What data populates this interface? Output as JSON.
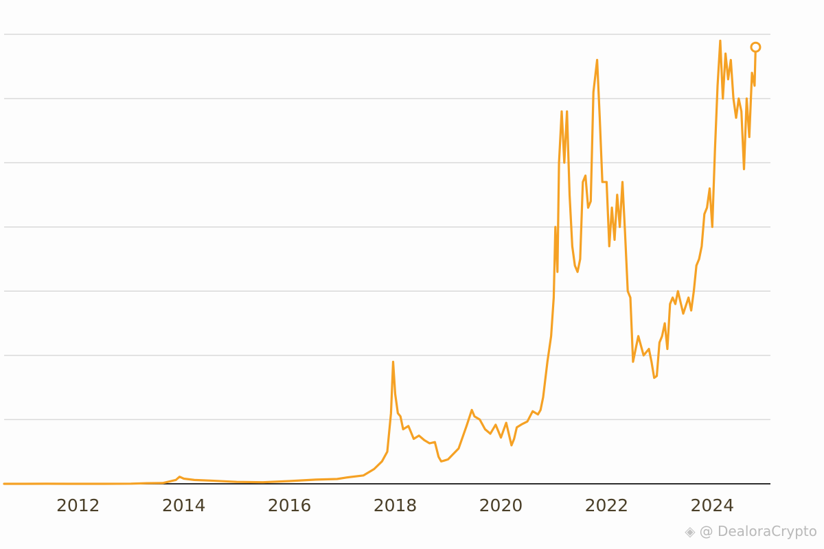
{
  "chart_data": {
    "type": "line",
    "title": "",
    "xlabel": "",
    "ylabel": "",
    "x_ticks": [
      "2012",
      "2014",
      "2016",
      "2018",
      "2020",
      "2022",
      "2024"
    ],
    "xlim": [
      2010.6,
      2025.1
    ],
    "ylim": [
      0,
      70000
    ],
    "y_gridlines": [
      10000,
      20000,
      30000,
      40000,
      50000,
      60000,
      70000
    ],
    "y_tick_labels_shown": false,
    "grid": true,
    "color": "#f5a124",
    "end_marker": true,
    "series": [
      {
        "x": [
          2010.6,
          2011.0,
          2011.4,
          2011.8,
          2012.5,
          2013.0,
          2013.3,
          2013.6,
          2013.85,
          2013.92,
          2014.0,
          2014.2,
          2014.5,
          2015.0,
          2015.5,
          2016.0,
          2016.5,
          2016.9,
          2017.1,
          2017.4,
          2017.6,
          2017.75,
          2017.85,
          2017.92,
          2017.96,
          2018.0,
          2018.05,
          2018.1,
          2018.15,
          2018.25,
          2018.35,
          2018.45,
          2018.55,
          2018.65,
          2018.75,
          2018.82,
          2018.87,
          2018.92,
          2019.0,
          2019.2,
          2019.35,
          2019.45,
          2019.5,
          2019.6,
          2019.7,
          2019.8,
          2019.9,
          2020.0,
          2020.1,
          2020.2,
          2020.25,
          2020.3,
          2020.4,
          2020.5,
          2020.6,
          2020.7,
          2020.75,
          2020.8,
          2020.88,
          2020.95,
          2021.0,
          2021.03,
          2021.07,
          2021.1,
          2021.15,
          2021.2,
          2021.25,
          2021.3,
          2021.35,
          2021.4,
          2021.45,
          2021.5,
          2021.55,
          2021.6,
          2021.65,
          2021.7,
          2021.75,
          2021.82,
          2021.87,
          2021.92,
          2022.0,
          2022.05,
          2022.1,
          2022.15,
          2022.2,
          2022.25,
          2022.3,
          2022.35,
          2022.4,
          2022.45,
          2022.5,
          2022.55,
          2022.6,
          2022.7,
          2022.8,
          2022.85,
          2022.9,
          2022.95,
          2023.0,
          2023.05,
          2023.1,
          2023.15,
          2023.2,
          2023.25,
          2023.3,
          2023.35,
          2023.45,
          2023.55,
          2023.6,
          2023.65,
          2023.7,
          2023.75,
          2023.8,
          2023.85,
          2023.9,
          2023.95,
          2024.0,
          2024.05,
          2024.1,
          2024.15,
          2024.2,
          2024.25,
          2024.3,
          2024.35,
          2024.4,
          2024.45,
          2024.5,
          2024.55,
          2024.6,
          2024.65,
          2024.7,
          2024.75,
          2024.8,
          2024.82
        ],
        "y": [
          0.1,
          1,
          10,
          3,
          5,
          20,
          100,
          120,
          600,
          1100,
          800,
          600,
          500,
          300,
          250,
          430,
          650,
          750,
          1000,
          1300,
          2300,
          3500,
          5000,
          11000,
          19000,
          14000,
          11000,
          10500,
          8500,
          9000,
          7000,
          7500,
          6800,
          6300,
          6500,
          4200,
          3500,
          3600,
          3800,
          5500,
          9000,
          11500,
          10500,
          10000,
          8500,
          7800,
          9200,
          7200,
          9500,
          6000,
          7000,
          8800,
          9300,
          9700,
          11300,
          10800,
          11500,
          13500,
          19000,
          23000,
          29000,
          40000,
          33000,
          50000,
          58000,
          50000,
          58000,
          45000,
          37000,
          34000,
          33000,
          35000,
          47000,
          48000,
          43000,
          44000,
          61000,
          66000,
          57000,
          47000,
          47000,
          37000,
          43000,
          38000,
          45000,
          40000,
          47000,
          39000,
          30000,
          29000,
          19000,
          21000,
          23000,
          20000,
          21000,
          19000,
          16500,
          16800,
          22000,
          23000,
          25000,
          21000,
          28000,
          29000,
          28000,
          30000,
          26500,
          29000,
          27000,
          30000,
          34000,
          35000,
          37000,
          42000,
          43000,
          46000,
          40000,
          52000,
          62000,
          69000,
          60000,
          67000,
          63000,
          66000,
          60000,
          57000,
          60000,
          58000,
          49000,
          60000,
          54000,
          64000,
          62000,
          68000
        ]
      }
    ]
  },
  "watermark": {
    "icon": "diamond-logo-icon",
    "text": "@ DealoraCrypto"
  }
}
